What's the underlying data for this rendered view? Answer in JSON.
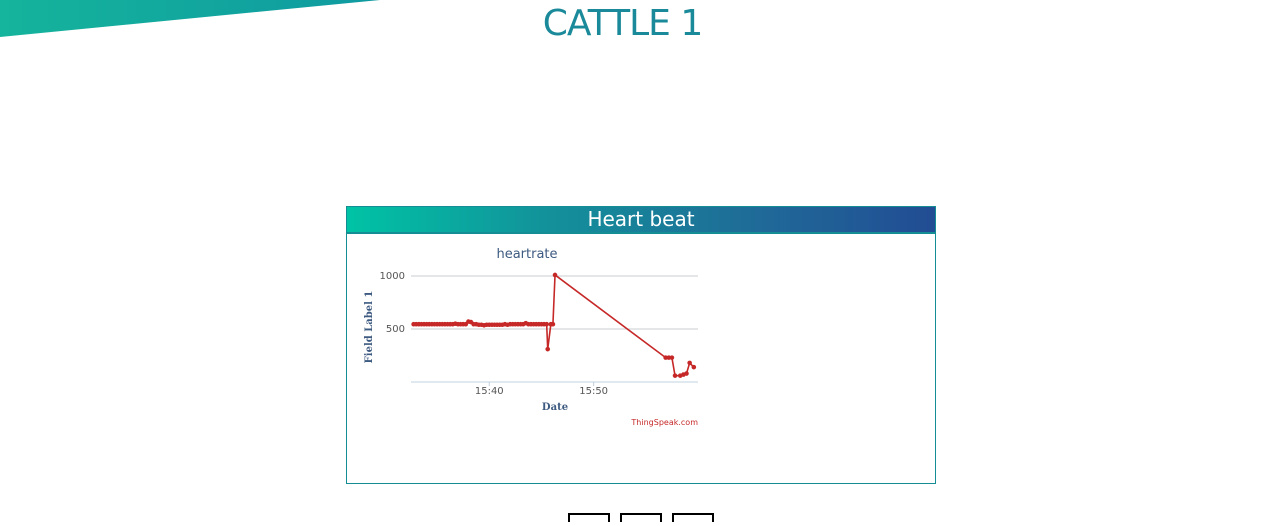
{
  "page": {
    "title": "CATTLE 1"
  },
  "card": {
    "header": "Heart beat"
  },
  "chart_data": {
    "type": "line",
    "title": "heartrate",
    "xlabel": "Date",
    "ylabel": "Field Label 1",
    "credit": "ThingSpeak.com",
    "x_ticks": [
      "15:40",
      "15:50"
    ],
    "y_ticks": [
      500,
      1000
    ],
    "xlim_minutes": [
      15.5,
      43.0
    ],
    "ylim": [
      0,
      1000
    ],
    "x_tick_minutes": [
      23.0,
      33.0
    ],
    "series": [
      {
        "color": "#c62828",
        "points": [
          [
            15.75,
            545
          ],
          [
            16.0,
            545
          ],
          [
            16.25,
            545
          ],
          [
            16.5,
            545
          ],
          [
            16.75,
            545
          ],
          [
            17.0,
            545
          ],
          [
            17.25,
            545
          ],
          [
            17.5,
            545
          ],
          [
            17.75,
            545
          ],
          [
            18.0,
            545
          ],
          [
            18.25,
            545
          ],
          [
            18.5,
            545
          ],
          [
            18.75,
            545
          ],
          [
            19.0,
            545
          ],
          [
            19.25,
            545
          ],
          [
            19.5,
            545
          ],
          [
            19.75,
            550
          ],
          [
            20.0,
            545
          ],
          [
            20.25,
            545
          ],
          [
            20.5,
            545
          ],
          [
            20.75,
            545
          ],
          [
            21.0,
            570
          ],
          [
            21.25,
            565
          ],
          [
            21.5,
            545
          ],
          [
            21.75,
            545
          ],
          [
            22.0,
            540
          ],
          [
            22.25,
            540
          ],
          [
            22.5,
            535
          ],
          [
            22.75,
            540
          ],
          [
            23.0,
            540
          ],
          [
            23.25,
            540
          ],
          [
            23.5,
            540
          ],
          [
            23.75,
            540
          ],
          [
            24.0,
            540
          ],
          [
            24.25,
            540
          ],
          [
            24.5,
            545
          ],
          [
            24.75,
            540
          ],
          [
            25.0,
            545
          ],
          [
            25.25,
            545
          ],
          [
            25.5,
            545
          ],
          [
            25.75,
            545
          ],
          [
            26.0,
            545
          ],
          [
            26.25,
            545
          ],
          [
            26.5,
            555
          ],
          [
            26.75,
            545
          ],
          [
            27.0,
            545
          ],
          [
            27.25,
            545
          ],
          [
            27.5,
            545
          ],
          [
            27.75,
            545
          ],
          [
            28.0,
            545
          ],
          [
            28.25,
            545
          ],
          [
            28.5,
            545
          ],
          [
            28.6,
            310
          ],
          [
            28.9,
            545
          ],
          [
            29.1,
            545
          ],
          [
            29.3,
            1010
          ],
          [
            39.9,
            230
          ],
          [
            40.2,
            230
          ],
          [
            40.5,
            230
          ],
          [
            40.8,
            60
          ],
          [
            41.3,
            60
          ],
          [
            41.6,
            70
          ],
          [
            41.9,
            80
          ],
          [
            42.2,
            180
          ],
          [
            42.6,
            140
          ]
        ]
      }
    ],
    "gridlines": true
  },
  "footer": {
    "buttons": [
      "",
      "",
      ""
    ]
  }
}
